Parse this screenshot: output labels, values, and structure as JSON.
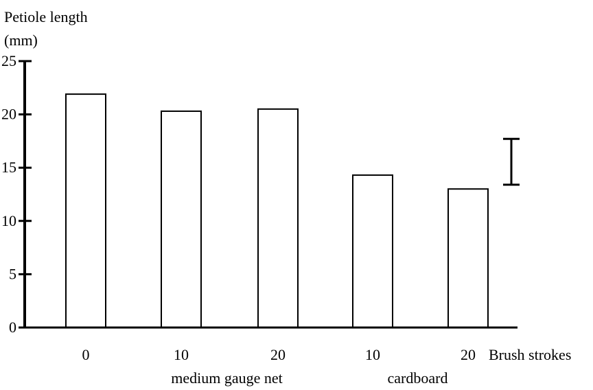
{
  "chart_data": {
    "type": "bar",
    "ylabel_line1": "Petiole length",
    "ylabel_line2": "(mm)",
    "xlabel": "Brush strokes",
    "categories": [
      "0",
      "10",
      "20",
      "10",
      "20"
    ],
    "values": [
      21.9,
      20.3,
      20.5,
      14.3,
      13.0
    ],
    "groups": [
      {
        "label": "medium gauge net",
        "categories": [
          1,
          2
        ]
      },
      {
        "label": "cardboard",
        "categories": [
          3,
          4
        ]
      }
    ],
    "ylim": [
      0,
      25
    ],
    "yticks": [
      0,
      5,
      10,
      15,
      20,
      25
    ],
    "yticklabels": [
      "0",
      "5",
      "10",
      "15",
      "20",
      "25"
    ],
    "error_bar": {
      "low": 13.4,
      "high": 17.7
    },
    "grid": false,
    "bar_fill": "#ffffff",
    "bar_stroke": "#000000"
  }
}
